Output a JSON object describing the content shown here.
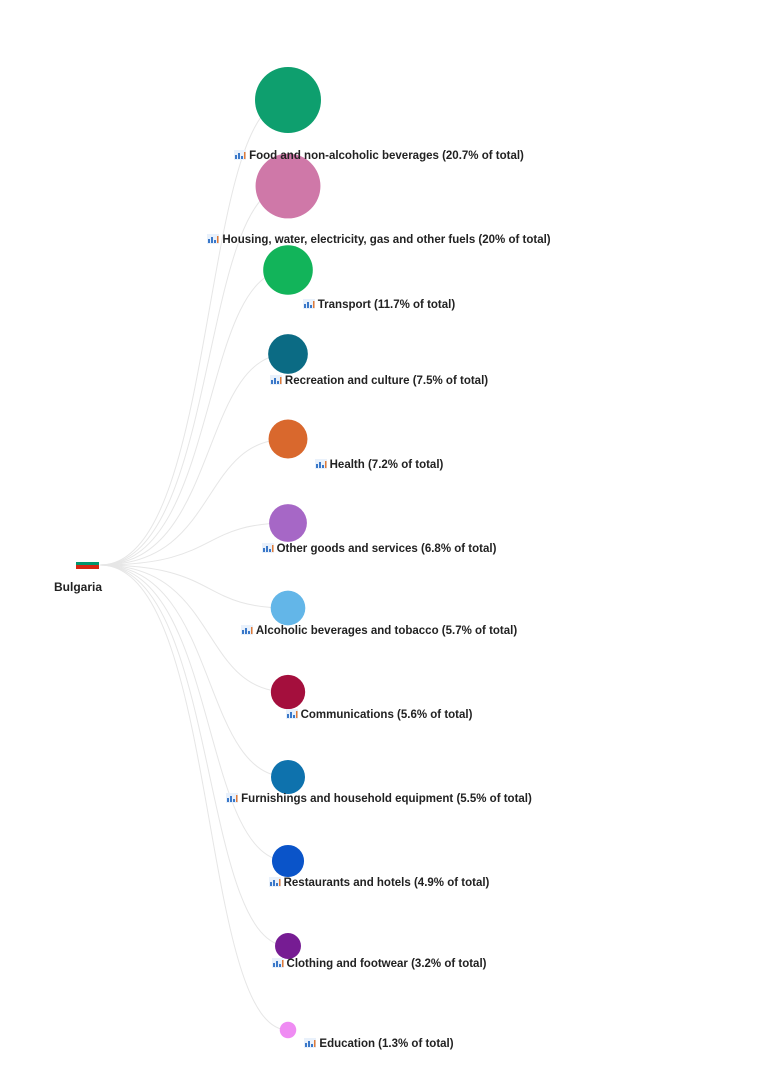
{
  "root": {
    "label": "Bulgaria",
    "flag_colors": [
      "#ffffff",
      "#00966e",
      "#d62612"
    ],
    "icon": "bulgaria-flag-icon"
  },
  "branch_icon": "category-chart-icon",
  "link_color": "#e6e6e6",
  "nodes": [
    {
      "label": "Food and non-alcoholic beverages (20.7% of total)",
      "share": 20.7,
      "color": "#0e9f6e"
    },
    {
      "label": "Housing, water, electricity, gas and other fuels (20% of total)",
      "share": 20,
      "color": "#cf78a8"
    },
    {
      "label": "Transport (11.7% of total)",
      "share": 11.7,
      "color": "#12b45a"
    },
    {
      "label": "Recreation and culture (7.5% of total)",
      "share": 7.5,
      "color": "#0b6b84"
    },
    {
      "label": "Health (7.2% of total)",
      "share": 7.2,
      "color": "#d9682d"
    },
    {
      "label": "Other goods and services (6.8% of total)",
      "share": 6.8,
      "color": "#a667c6"
    },
    {
      "label": "Alcoholic beverages and tobacco (5.7% of total)",
      "share": 5.7,
      "color": "#63b6e8"
    },
    {
      "label": "Communications (5.6% of total)",
      "share": 5.6,
      "color": "#a40f3d"
    },
    {
      "label": "Furnishings and household equipment (5.5% of total)",
      "share": 5.5,
      "color": "#0e72ad"
    },
    {
      "label": "Restaurants and hotels (4.9% of total)",
      "share": 4.9,
      "color": "#0a54c9"
    },
    {
      "label": "Clothing and footwear (3.2% of total)",
      "share": 3.2,
      "color": "#761c93"
    },
    {
      "label": "Education (1.3% of total)",
      "share": 1.3,
      "color": "#ef8cf3"
    }
  ]
}
